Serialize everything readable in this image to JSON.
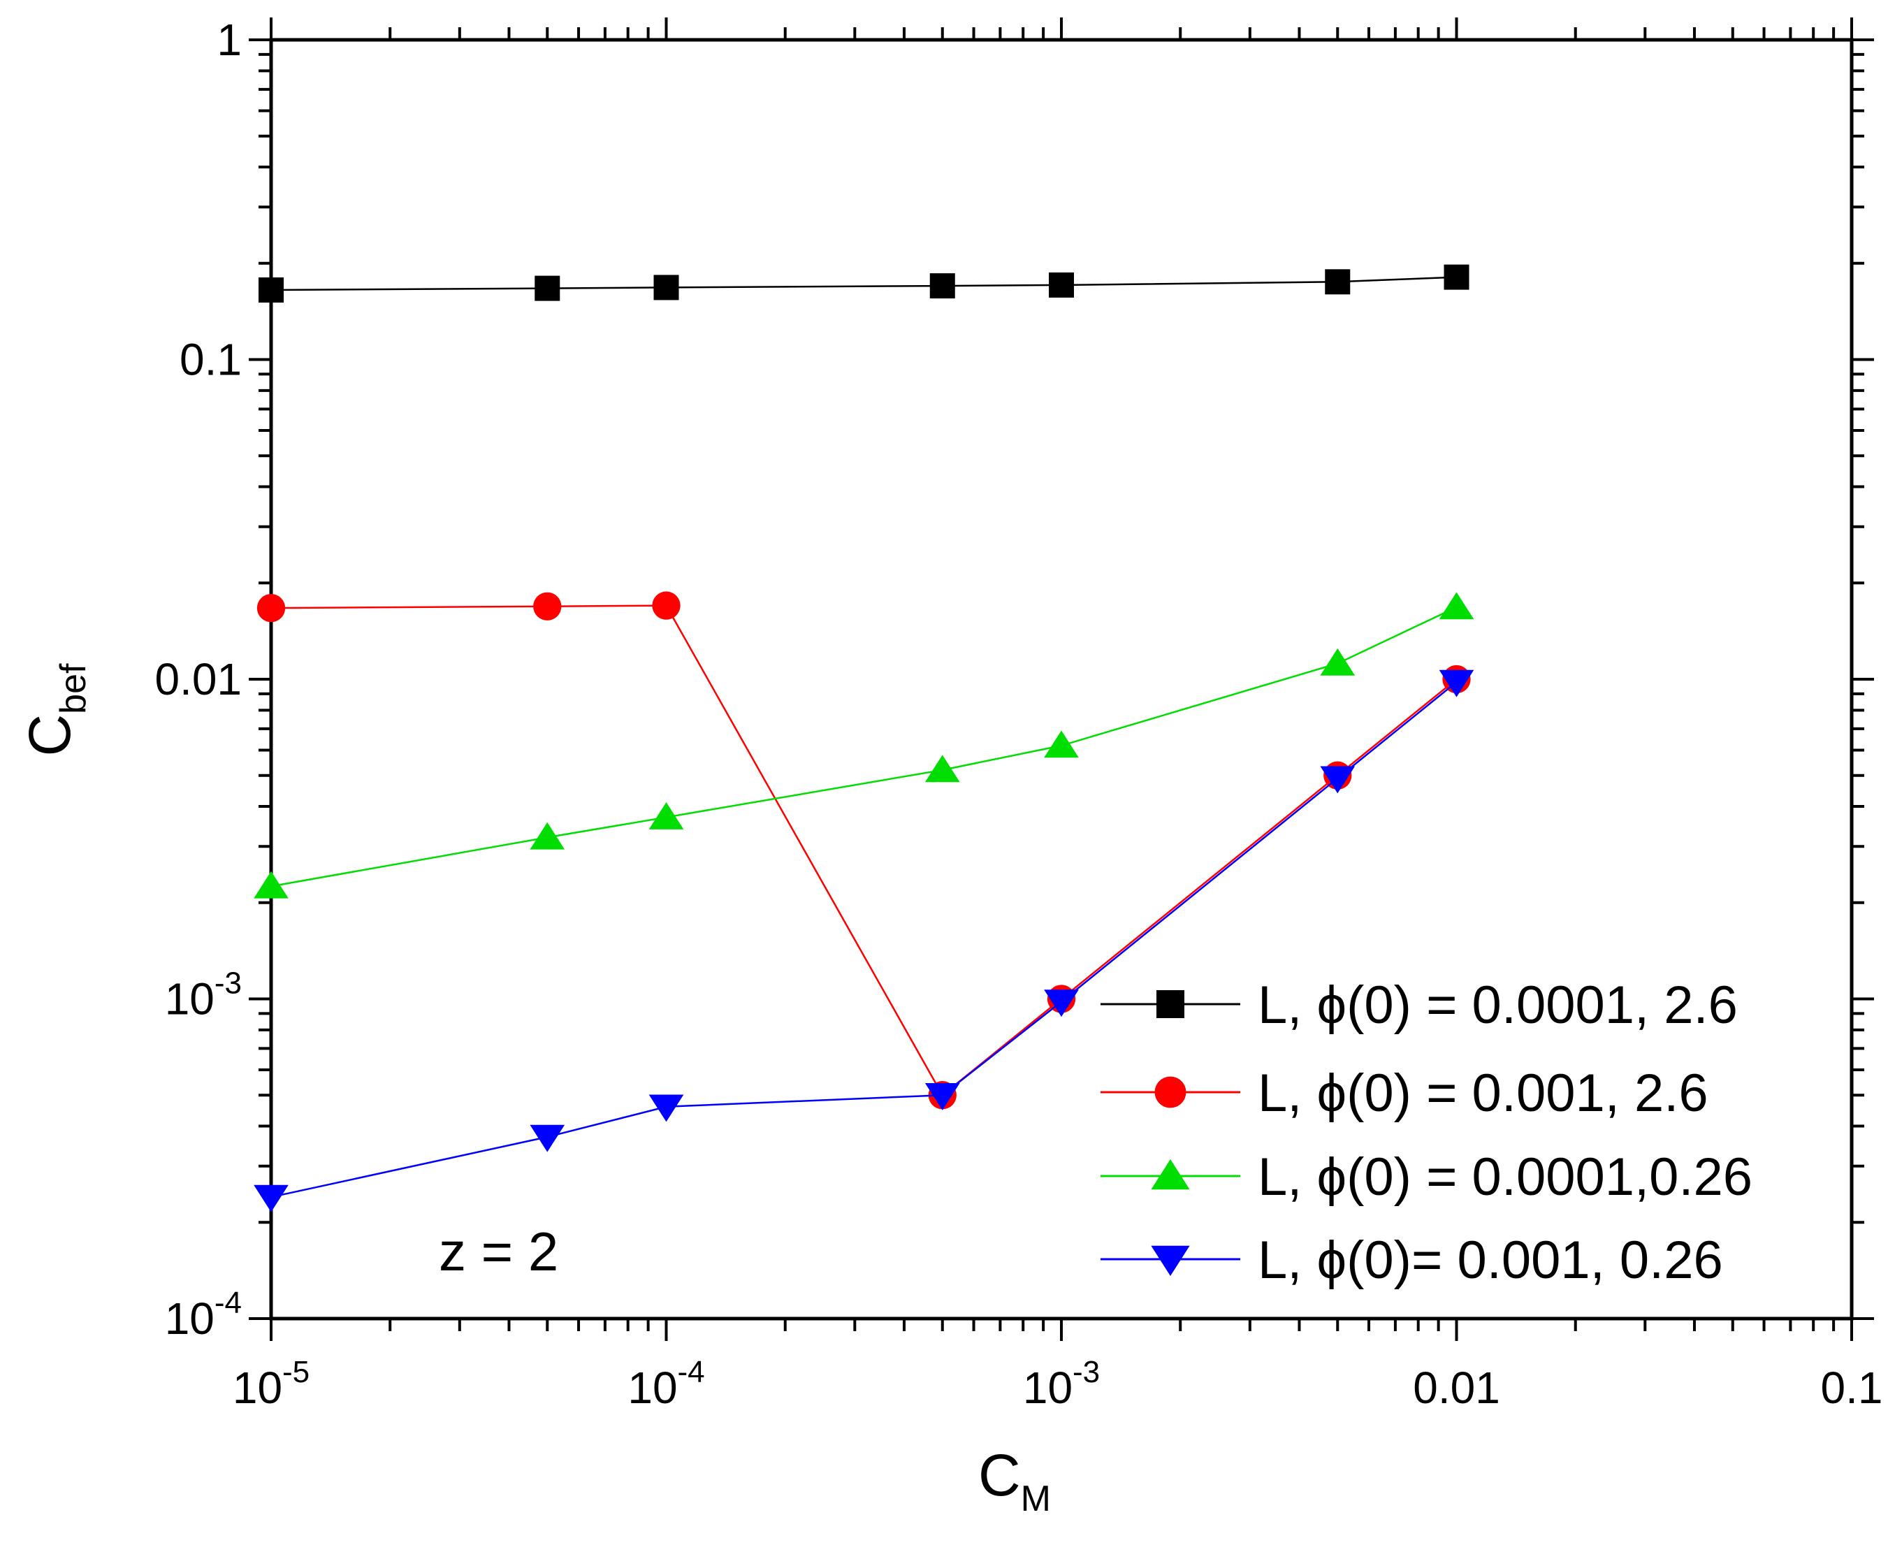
{
  "chart_data": {
    "type": "line",
    "title": "",
    "xlabel": "C",
    "xlabel_sub": "M",
    "ylabel": "C",
    "ylabel_sub": "bef",
    "x_scale": "log",
    "y_scale": "log",
    "xlim": [
      1e-05,
      0.1
    ],
    "ylim": [
      0.0001,
      1
    ],
    "grid": false,
    "legend_position": "bottom-right",
    "x_ticks": [
      {
        "value": 1e-05,
        "base": "10",
        "exp": "-5"
      },
      {
        "value": 0.0001,
        "base": "10",
        "exp": "-4"
      },
      {
        "value": 0.001,
        "base": "10",
        "exp": "-3"
      },
      {
        "value": 0.01,
        "base": "0.01",
        "exp": ""
      },
      {
        "value": 0.1,
        "base": "0.1",
        "exp": ""
      }
    ],
    "y_ticks": [
      {
        "value": 0.0001,
        "base": "10",
        "exp": "-4"
      },
      {
        "value": 0.001,
        "base": "10",
        "exp": "-3"
      },
      {
        "value": 0.01,
        "base": "0.01",
        "exp": ""
      },
      {
        "value": 0.1,
        "base": "0.1",
        "exp": ""
      },
      {
        "value": 1,
        "base": "1",
        "exp": ""
      }
    ],
    "annotation": "z = 2",
    "x": [
      1e-05,
      5e-05,
      0.0001,
      0.0005,
      0.001,
      0.005,
      0.01
    ],
    "series": [
      {
        "name": "L, ϕ(0) = 0.0001, 2.6",
        "color": "#000000",
        "marker": "square",
        "values": [
          0.165,
          0.167,
          0.168,
          0.17,
          0.171,
          0.175,
          0.181
        ]
      },
      {
        "name": "L, ϕ(0) = 0.001, 2.6",
        "color": "#ff0000",
        "marker": "circle",
        "values": [
          0.0167,
          0.0169,
          0.017,
          0.0005,
          0.001,
          0.005,
          0.01
        ]
      },
      {
        "name": "L, ϕ(0) = 0.0001,0.26",
        "color": "#00dd00",
        "marker": "triangle-up",
        "values": [
          0.00225,
          0.0032,
          0.0037,
          0.0052,
          0.0062,
          0.0112,
          0.0168
        ]
      },
      {
        "name": "L, ϕ(0)= 0.001, 0.26",
        "color": "#0000ff",
        "marker": "triangle-down",
        "values": [
          0.00024,
          0.00037,
          0.00046,
          0.0005,
          0.00098,
          0.0049,
          0.0098
        ]
      }
    ]
  }
}
